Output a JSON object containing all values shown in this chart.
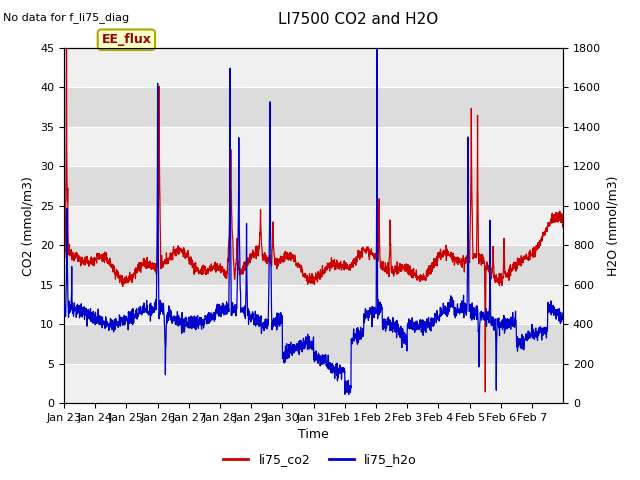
{
  "title": "LI7500 CO2 and H2O",
  "top_left_text": "No data for f_li75_diag",
  "xlabel": "Time",
  "ylabel_left": "CO2 (mmol/m3)",
  "ylabel_right": "H2O (mmol/m3)",
  "ylim_left": [
    0,
    45
  ],
  "ylim_right": [
    0,
    1800
  ],
  "yticks_left": [
    0,
    5,
    10,
    15,
    20,
    25,
    30,
    35,
    40,
    45
  ],
  "yticks_right": [
    0,
    200,
    400,
    600,
    800,
    1000,
    1200,
    1400,
    1600,
    1800
  ],
  "co2_color": "#cc0000",
  "h2o_color": "#0000cc",
  "legend_box_facecolor": "#ffffcc",
  "legend_box_edgecolor": "#aaaa00",
  "band_colors": [
    "#f0f0f0",
    "#dcdcdc"
  ],
  "xtick_labels": [
    "Jan 23",
    "Jan 24",
    "Jan 25",
    "Jan 26",
    "Jan 27",
    "Jan 28",
    "Jan 29",
    "Jan 30",
    "Jan 31",
    "Feb 1",
    "Feb 2",
    "Feb 3",
    "Feb 4",
    "Feb 5",
    "Feb 6",
    "Feb 7"
  ],
  "ee_flux_label": "EE_flux",
  "n_points": 2000
}
